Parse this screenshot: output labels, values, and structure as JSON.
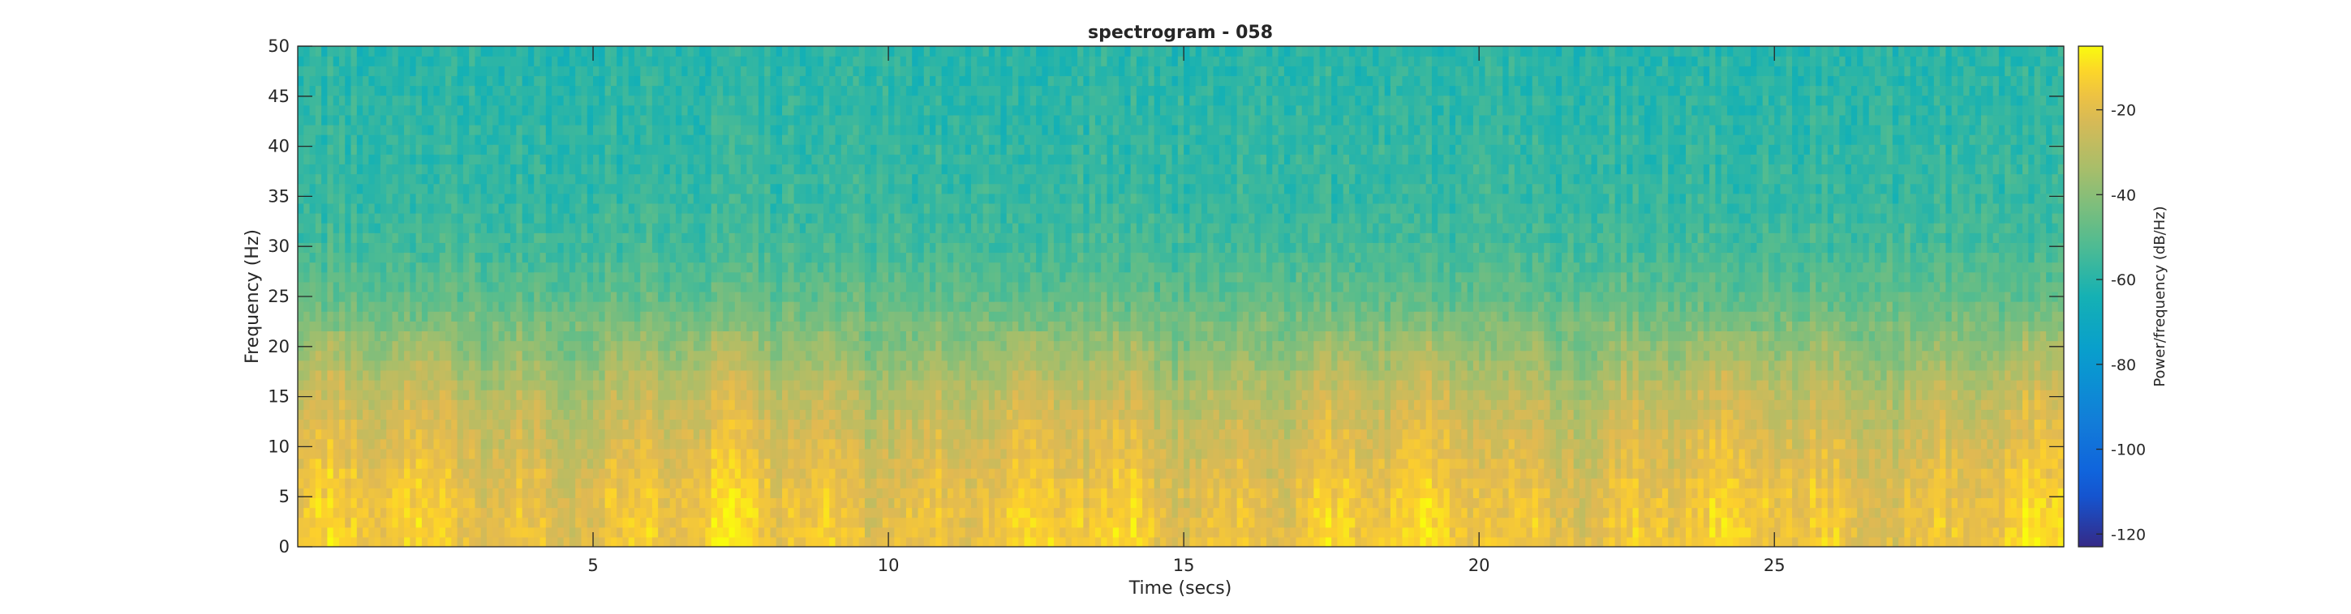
{
  "chart_data": {
    "type": "heatmap",
    "title": "spectrogram - 058",
    "xlabel": "Time (secs)",
    "ylabel": "Frequency (Hz)",
    "colorbar_label": "Power/frequency (dB/Hz)",
    "xlim": [
      0,
      29.9
    ],
    "ylim": [
      0,
      50
    ],
    "xticks": [
      5,
      10,
      15,
      20,
      25
    ],
    "yticks": [
      0,
      5,
      10,
      15,
      20,
      25,
      30,
      35,
      40,
      45,
      50
    ],
    "clim": [
      -123,
      -5
    ],
    "cticks": [
      -120,
      -100,
      -80,
      -60,
      -40,
      -20
    ],
    "colormap": "parula",
    "profile_db_by_freq": {
      "freq_hz": [
        0,
        5,
        10,
        15,
        20,
        25,
        30,
        35,
        40,
        45,
        50
      ],
      "power_db": [
        -15,
        -17,
        -22,
        -28,
        -38,
        -48,
        -54,
        -57,
        -58,
        -59,
        -60
      ]
    }
  }
}
